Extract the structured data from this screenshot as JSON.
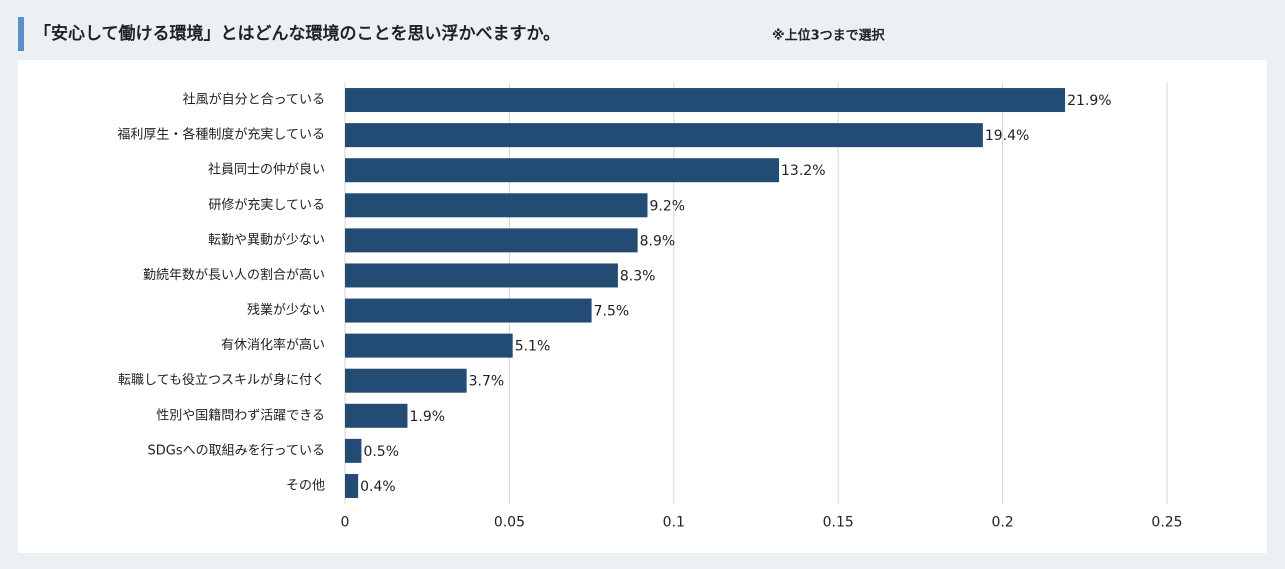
{
  "chart_data": {
    "type": "barh",
    "title": "「安心して働ける環境」とはどんな環境のことを思い浮かべますか。",
    "subtitle": "※上位3つまで選択",
    "categories": [
      "社風が自分と合っている",
      "福利厚生・各種制度が充実している",
      "社員同士の仲が良い",
      "研修が充実している",
      "転勤や異動が少ない",
      "勤続年数が長い人の割合が高い",
      "残業が少ない",
      "有休消化率が高い",
      "転職しても役立つスキルが身に付く",
      "性別や国籍問わず活躍できる",
      "SDGsへの取組みを行っている",
      "その他"
    ],
    "values": [
      0.219,
      0.194,
      0.132,
      0.092,
      0.089,
      0.083,
      0.075,
      0.051,
      0.037,
      0.019,
      0.005,
      0.004
    ],
    "value_labels": [
      "21.9%",
      "19.4%",
      "13.2%",
      "9.2%",
      "8.9%",
      "8.3%",
      "7.5%",
      "5.1%",
      "3.7%",
      "1.9%",
      "0.5%",
      "0.4%"
    ],
    "color": "#234c74",
    "xlim": [
      0,
      0.25
    ],
    "xticks": [
      0,
      0.05,
      0.1,
      0.15,
      0.2,
      0.25
    ],
    "grid": true
  }
}
